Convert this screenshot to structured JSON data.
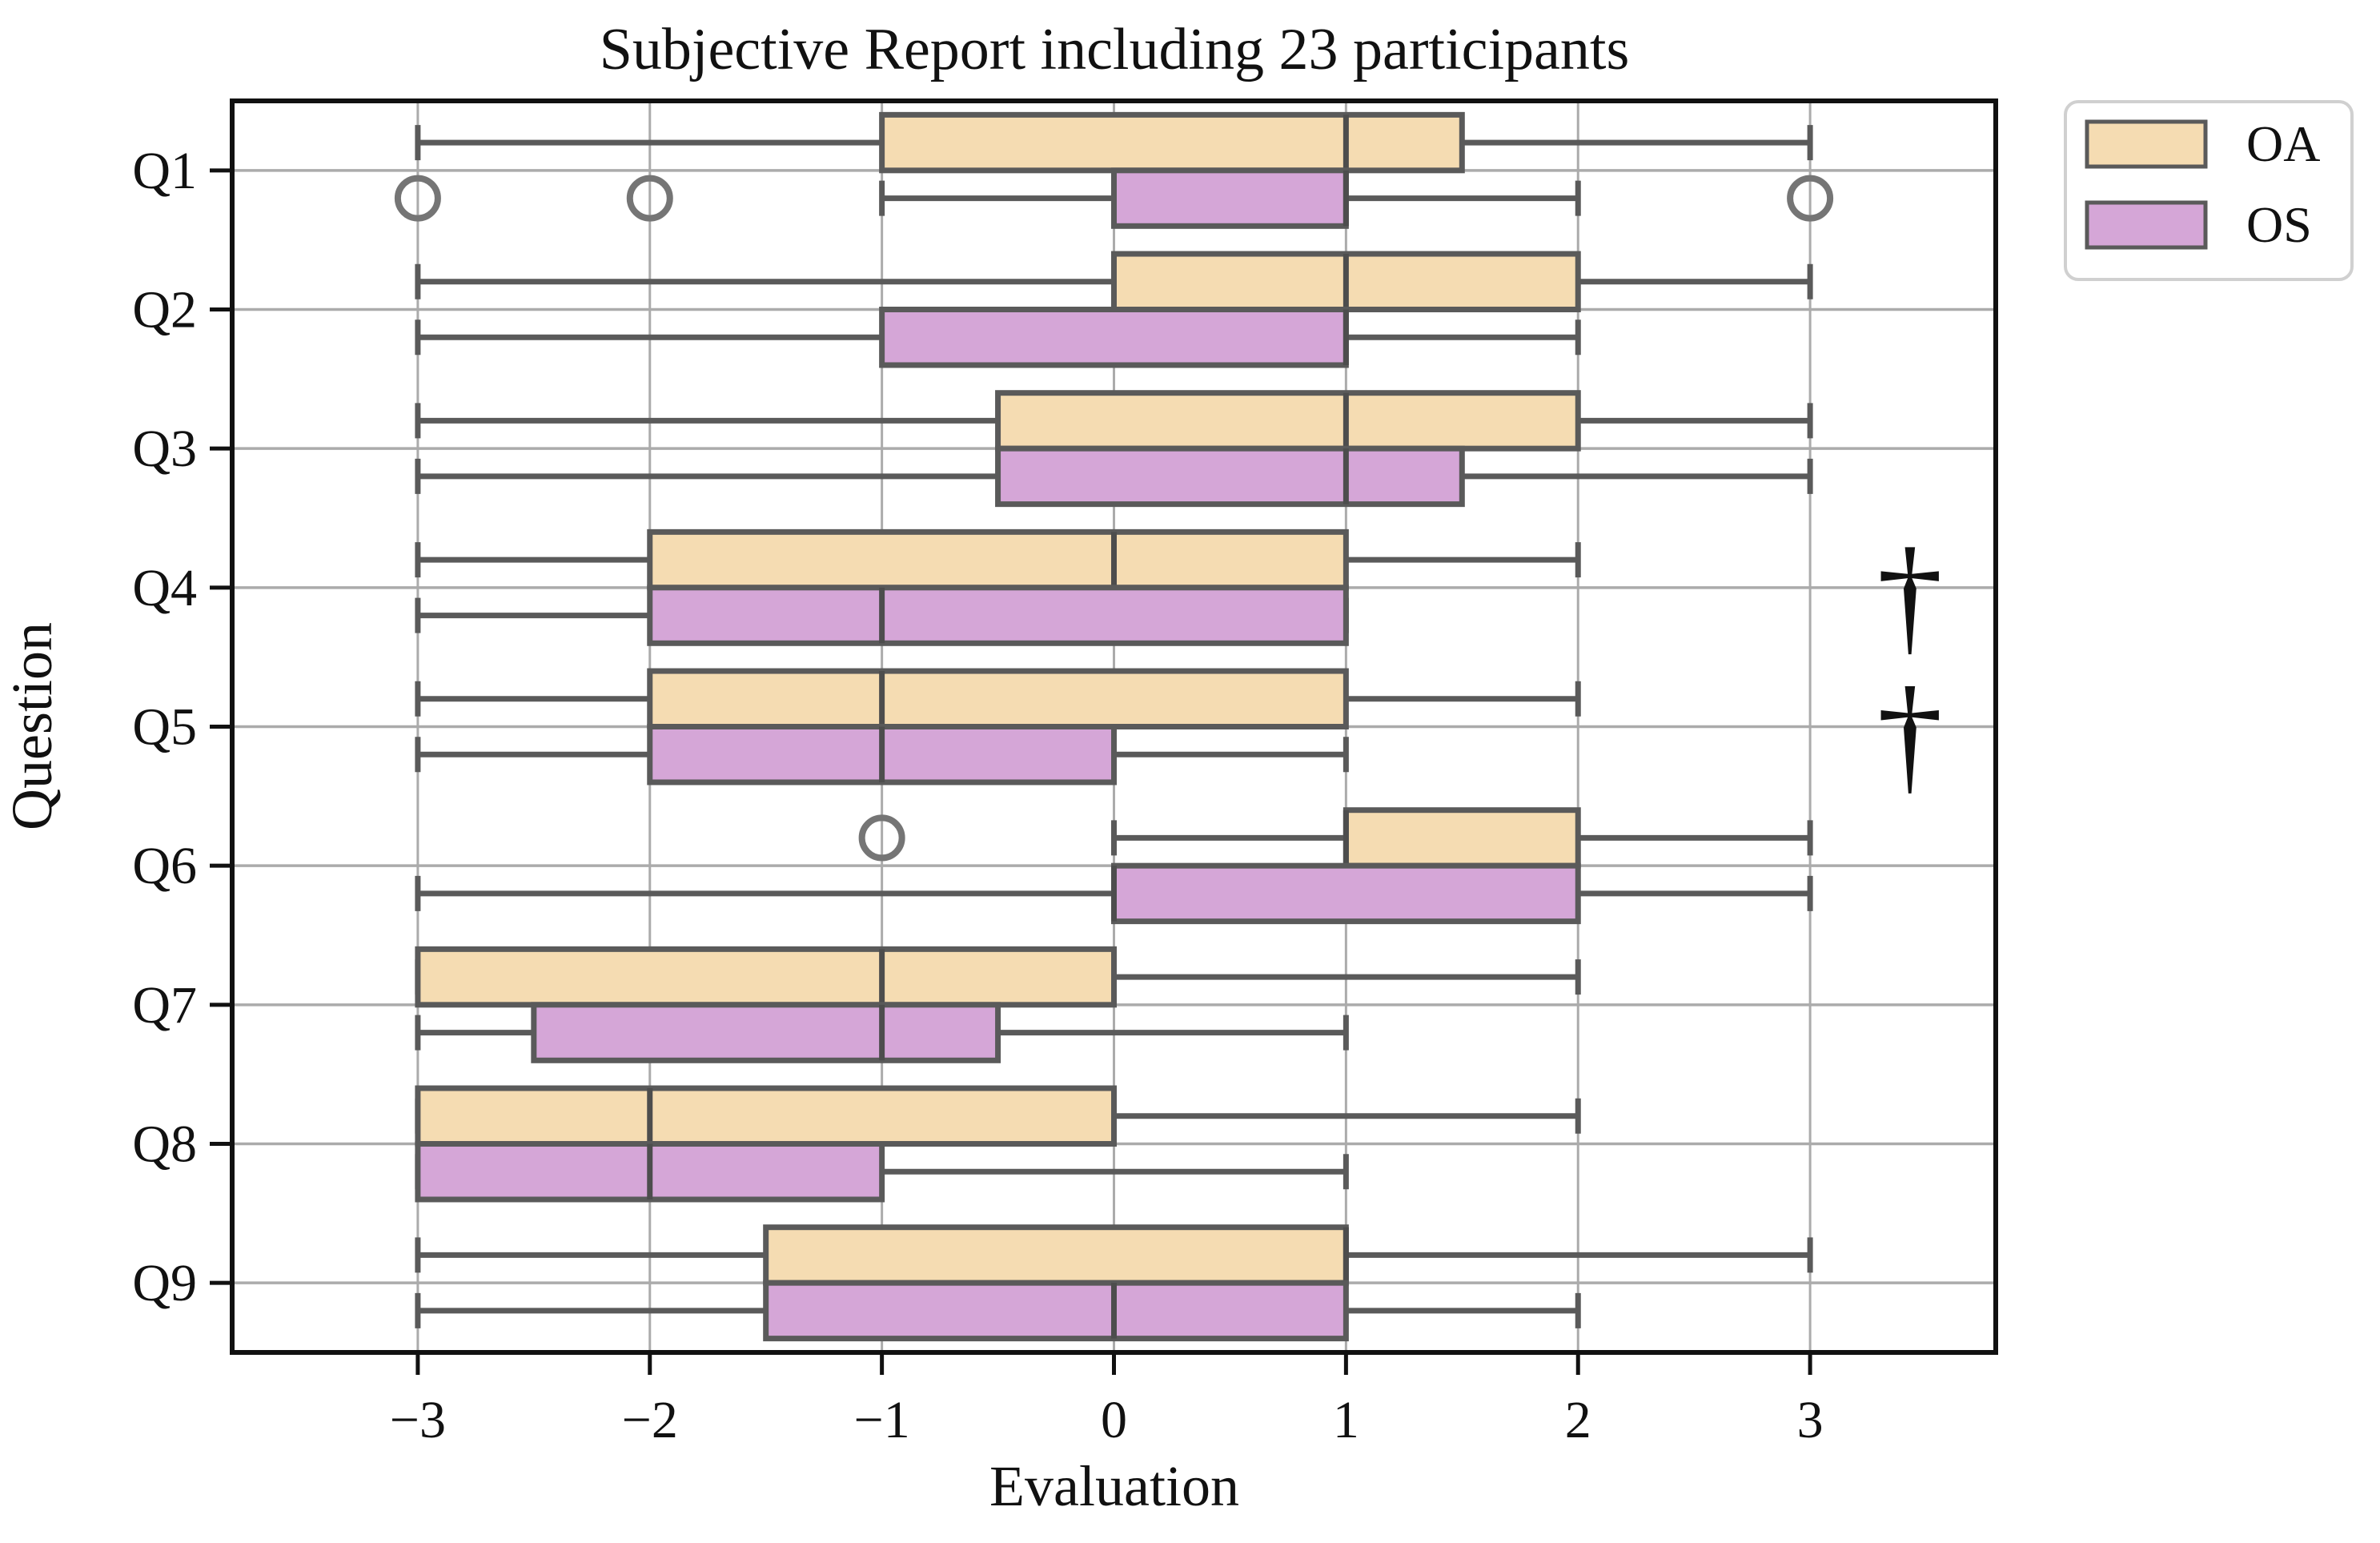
{
  "title": "Subjective Report including 23 participants",
  "xlabel": "Evaluation",
  "ylabel": "Question",
  "legend": {
    "items": [
      {
        "label": "OA",
        "color": "#f5dcb2"
      },
      {
        "label": "OS",
        "color": "#d5a6d7"
      }
    ]
  },
  "colors": {
    "box_edge": "#5a5a5a",
    "median": "#4d4d4d",
    "whisker": "#5a5a5a",
    "grid": "#ababab",
    "spine": "#111111",
    "outlier_ring": "#757575",
    "annotation": "#3d3d3d",
    "legend_border": "#d0d0d0"
  },
  "chart_data": {
    "type": "boxplot",
    "orientation": "horizontal",
    "title": "Subjective Report including 23 participants",
    "xlabel": "Evaluation",
    "ylabel": "Question",
    "categories": [
      "Q1",
      "Q2",
      "Q3",
      "Q4",
      "Q5",
      "Q6",
      "Q7",
      "Q8",
      "Q9"
    ],
    "x_ticks": [
      -3,
      -2,
      -1,
      0,
      1,
      2,
      3
    ],
    "x_tick_labels": [
      "−3",
      "−2",
      "−1",
      "0",
      "1",
      "2",
      "3"
    ],
    "xlim": [
      -3.8,
      3.8
    ],
    "grid": true,
    "legend_position": "outside upper right",
    "series": [
      {
        "name": "OA",
        "fill": "#f5dcb2",
        "boxes": [
          {
            "category": "Q1",
            "whislo": -3,
            "q1": -1,
            "med": 1,
            "q3": 1.5,
            "whishi": 3,
            "outliers": []
          },
          {
            "category": "Q2",
            "whislo": -3,
            "q1": 0,
            "med": 1,
            "q3": 2,
            "whishi": 3,
            "outliers": []
          },
          {
            "category": "Q3",
            "whislo": -3,
            "q1": -0.5,
            "med": 1,
            "q3": 2,
            "whishi": 3,
            "outliers": []
          },
          {
            "category": "Q4",
            "whislo": -3,
            "q1": -2,
            "med": 0,
            "q3": 1,
            "whishi": 2,
            "outliers": []
          },
          {
            "category": "Q5",
            "whislo": -3,
            "q1": -2,
            "med": -1,
            "q3": 1,
            "whishi": 2,
            "outliers": []
          },
          {
            "category": "Q6",
            "whislo": 0,
            "q1": 1,
            "med": 1,
            "q3": 2,
            "whishi": 3,
            "outliers": [
              -1
            ]
          },
          {
            "category": "Q7",
            "whislo": -3,
            "q1": -3,
            "med": -1,
            "q3": 0,
            "whishi": 2,
            "outliers": []
          },
          {
            "category": "Q8",
            "whislo": -3,
            "q1": -3,
            "med": -2,
            "q3": 0,
            "whishi": 2,
            "outliers": []
          },
          {
            "category": "Q9",
            "whislo": -3,
            "q1": -1.5,
            "med": 1,
            "q3": 1,
            "whishi": 3,
            "outliers": []
          }
        ]
      },
      {
        "name": "OS",
        "fill": "#d5a6d7",
        "boxes": [
          {
            "category": "Q1",
            "whislo": -1,
            "q1": 0,
            "med": 1,
            "q3": 1,
            "whishi": 2,
            "outliers": [
              -3,
              -2,
              3
            ]
          },
          {
            "category": "Q2",
            "whislo": -3,
            "q1": -1,
            "med": 1,
            "q3": 1,
            "whishi": 2,
            "outliers": []
          },
          {
            "category": "Q3",
            "whislo": -3,
            "q1": -0.5,
            "med": 1,
            "q3": 1.5,
            "whishi": 3,
            "outliers": []
          },
          {
            "category": "Q4",
            "whislo": -3,
            "q1": -2,
            "med": -1,
            "q3": 1,
            "whishi": 1,
            "outliers": []
          },
          {
            "category": "Q5",
            "whislo": -3,
            "q1": -2,
            "med": -1,
            "q3": 0,
            "whishi": 1,
            "outliers": []
          },
          {
            "category": "Q6",
            "whislo": -3,
            "q1": 0,
            "med": 0,
            "q3": 2,
            "whishi": 3,
            "outliers": []
          },
          {
            "category": "Q7",
            "whislo": -3,
            "q1": -2.5,
            "med": -1,
            "q3": -0.5,
            "whishi": 1,
            "outliers": []
          },
          {
            "category": "Q8",
            "whislo": -3,
            "q1": -3,
            "med": -2,
            "q3": -1,
            "whishi": 1,
            "outliers": []
          },
          {
            "category": "Q9",
            "whislo": -3,
            "q1": -1.5,
            "med": 0,
            "q3": 1,
            "whishi": 2,
            "outliers": []
          }
        ]
      }
    ],
    "annotations": [
      {
        "text": "†",
        "x": 3.43,
        "category": "Q4"
      },
      {
        "text": "†",
        "x": 3.43,
        "category": "Q5"
      }
    ]
  }
}
